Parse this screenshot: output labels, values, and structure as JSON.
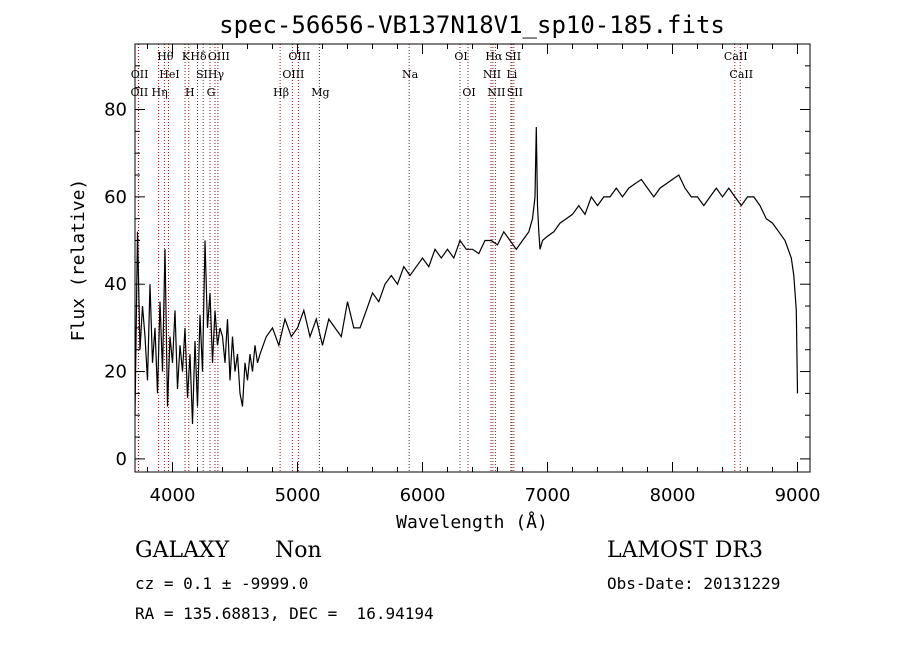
{
  "chart_data": {
    "type": "line",
    "title": "spec-56656-VB137N18V1_sp10-185.fits",
    "xlabel": "Wavelength (Å)",
    "ylabel": "Flux (relative)",
    "xlim": [
      3700,
      9100
    ],
    "ylim": [
      -3,
      95
    ],
    "xticks": [
      4000,
      5000,
      6000,
      7000,
      8000,
      9000
    ],
    "yticks": [
      0,
      20,
      40,
      60,
      80
    ],
    "grid": false,
    "line_color": "#000000",
    "marker_line_color": "#8b1a1a",
    "series": [
      {
        "x": [
          3700,
          3720,
          3740,
          3760,
          3780,
          3800,
          3820,
          3840,
          3860,
          3880,
          3900,
          3920,
          3940,
          3960,
          3980,
          4000,
          4020,
          4040,
          4060,
          4080,
          4100,
          4120,
          4140,
          4160,
          4180,
          4200,
          4220,
          4240,
          4260,
          4280,
          4300,
          4320,
          4340,
          4360,
          4380,
          4400,
          4420,
          4440,
          4460,
          4480,
          4500,
          4520,
          4540,
          4560,
          4580,
          4600,
          4620,
          4640,
          4660,
          4680,
          4700,
          4750,
          4800,
          4850,
          4900,
          4950,
          5000,
          5050,
          5100,
          5150,
          5200,
          5250,
          5300,
          5350,
          5400,
          5450,
          5500,
          5550,
          5600,
          5650,
          5700,
          5750,
          5800,
          5850,
          5900,
          5950,
          6000,
          6050,
          6100,
          6150,
          6200,
          6250,
          6300,
          6350,
          6400,
          6450,
          6500,
          6550,
          6600,
          6650,
          6700,
          6750,
          6800,
          6850,
          6880,
          6900,
          6910,
          6920,
          6930,
          6940,
          6960,
          7000,
          7050,
          7100,
          7150,
          7200,
          7250,
          7300,
          7350,
          7400,
          7450,
          7500,
          7550,
          7600,
          7650,
          7700,
          7750,
          7800,
          7850,
          7900,
          7950,
          8000,
          8050,
          8100,
          8150,
          8200,
          8250,
          8300,
          8350,
          8400,
          8450,
          8500,
          8550,
          8600,
          8650,
          8700,
          8750,
          8800,
          8850,
          8900,
          8950,
          8970,
          8990,
          9000
        ],
        "y": [
          10,
          52,
          25,
          35,
          28,
          18,
          40,
          22,
          30,
          15,
          36,
          20,
          48,
          12,
          28,
          22,
          34,
          16,
          26,
          20,
          30,
          14,
          24,
          8,
          27,
          12,
          33,
          20,
          50,
          30,
          38,
          22,
          34,
          26,
          30,
          28,
          22,
          32,
          18,
          28,
          20,
          24,
          15,
          12,
          22,
          18,
          24,
          20,
          26,
          22,
          24,
          28,
          30,
          26,
          32,
          28,
          30,
          34,
          28,
          32,
          26,
          32,
          30,
          28,
          36,
          30,
          30,
          34,
          38,
          36,
          40,
          42,
          40,
          44,
          42,
          44,
          46,
          44,
          48,
          46,
          48,
          46,
          50,
          48,
          48,
          47,
          50,
          50,
          49,
          52,
          50,
          48,
          50,
          52,
          55,
          60,
          76,
          58,
          52,
          48,
          50,
          51,
          52,
          54,
          55,
          56,
          58,
          56,
          60,
          58,
          60,
          60,
          62,
          60,
          62,
          63,
          64,
          62,
          60,
          62,
          63,
          64,
          65,
          62,
          60,
          60,
          58,
          60,
          62,
          60,
          62,
          60,
          58,
          60,
          60,
          58,
          55,
          54,
          52,
          50,
          46,
          42,
          34,
          15
        ]
      }
    ],
    "line_markers": [
      {
        "x": 3727,
        "label": "OII",
        "row": 3
      },
      {
        "x": 3729,
        "label": "OII",
        "row": 2
      },
      {
        "x": 3889,
        "label": "Hη",
        "row": 3
      },
      {
        "x": 3935,
        "label": "Hθ",
        "row": 1
      },
      {
        "x": 3968,
        "label": "HeI",
        "row": 2
      },
      {
        "x": 4100,
        "label": "K",
        "row": 1
      },
      {
        "x": 4130,
        "label": "H",
        "row": 3
      },
      {
        "x": 4200,
        "label": "Hδ",
        "row": 1
      },
      {
        "x": 4245,
        "label": "SII",
        "row": 2
      },
      {
        "x": 4300,
        "label": "G",
        "row": 3
      },
      {
        "x": 4340,
        "label": "Hγ",
        "row": 2
      },
      {
        "x": 4363,
        "label": "OIII",
        "row": 1
      },
      {
        "x": 4861,
        "label": "Hβ",
        "row": 3
      },
      {
        "x": 4959,
        "label": "OIII",
        "row": 2
      },
      {
        "x": 5007,
        "label": "OIII",
        "row": 1
      },
      {
        "x": 5175,
        "label": "Mg",
        "row": 3
      },
      {
        "x": 5893,
        "label": "Na",
        "row": 2
      },
      {
        "x": 6300,
        "label": "OI",
        "row": 1
      },
      {
        "x": 6364,
        "label": "OI",
        "row": 3
      },
      {
        "x": 6548,
        "label": "NII",
        "row": 2
      },
      {
        "x": 6563,
        "label": "Hα",
        "row": 1
      },
      {
        "x": 6583,
        "label": "NII",
        "row": 3
      },
      {
        "x": 6716,
        "label": "SII",
        "row": 1
      },
      {
        "x": 6707,
        "label": "Li",
        "row": 2
      },
      {
        "x": 6731,
        "label": "SII",
        "row": 3
      },
      {
        "x": 8498,
        "label": "CaII",
        "row": 1
      },
      {
        "x": 8542,
        "label": "CaII",
        "row": 2
      }
    ]
  },
  "info": {
    "class_label": "GALAXY",
    "subclass_label": "Non",
    "survey_label": "LAMOST DR3",
    "cz_text": "cz = 0.1 ± -9999.0",
    "obs_date_text": "Obs-Date: 20131229",
    "coords_text": "RA = 135.68813, DEC =  16.94194"
  }
}
